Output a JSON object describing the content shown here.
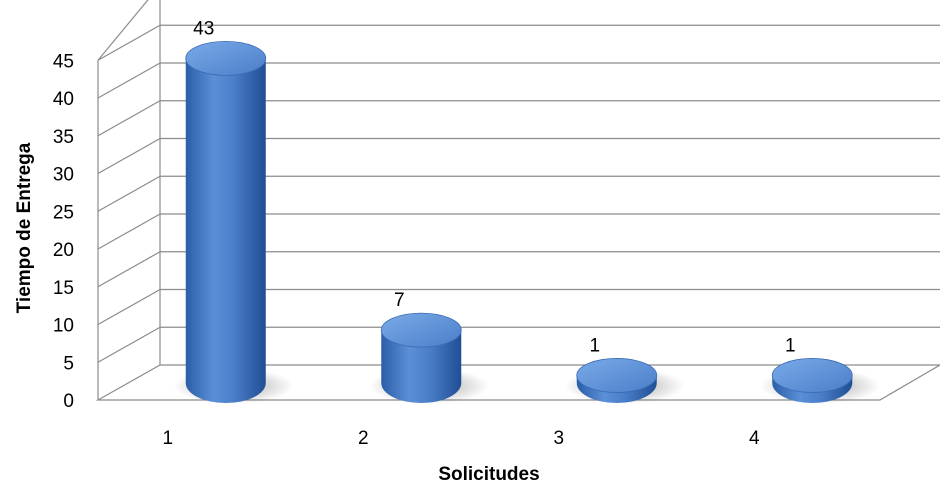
{
  "chart_data": {
    "type": "bar",
    "style": "3d-cylinder",
    "categories": [
      "1",
      "2",
      "3",
      "4"
    ],
    "values": [
      43,
      7,
      1,
      1
    ],
    "data_labels": [
      "43",
      "7",
      "1",
      "1"
    ],
    "xlabel": "Solicitudes",
    "ylabel": "Tiempo de Entrega",
    "ylim": [
      0,
      45
    ],
    "y_ticks": [
      "0",
      "5",
      "10",
      "15",
      "20",
      "25",
      "30",
      "35",
      "40",
      "45"
    ],
    "grid": true,
    "legend": "none",
    "colors": {
      "bar": "#4a7ec8",
      "bar_top": "#6b9de0",
      "grid": "#8c8c8c"
    }
  }
}
